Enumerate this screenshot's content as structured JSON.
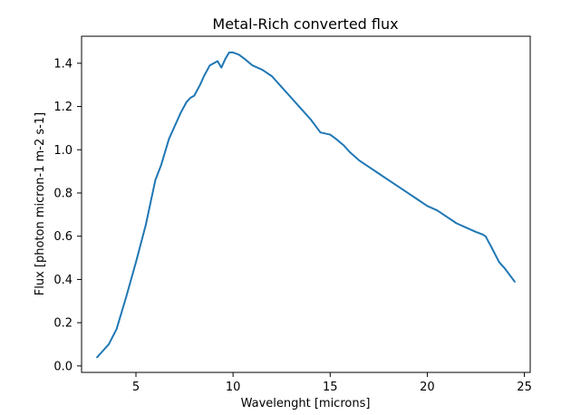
{
  "chart_data": {
    "type": "line",
    "title": "Metal-Rich converted flux",
    "xlabel": "Wavelenght [microns]",
    "ylabel": "Flux [photon micron-1 m-2 s-1]",
    "xlim": [
      2.2,
      25.3
    ],
    "ylim": [
      -0.03,
      1.525
    ],
    "grid": false,
    "legend": "none",
    "x_ticks": [
      5,
      10,
      15,
      20,
      25
    ],
    "x_tick_labels": [
      "5",
      "10",
      "15",
      "20",
      "25"
    ],
    "y_ticks": [
      0.0,
      0.2,
      0.4,
      0.6,
      0.8,
      1.0,
      1.2,
      1.4
    ],
    "y_tick_labels": [
      "0.0",
      "0.2",
      "0.4",
      "0.6",
      "0.8",
      "1.0",
      "1.2",
      "1.4"
    ],
    "series": [
      {
        "color": "#1f77b4",
        "x": [
          3.0,
          3.3,
          3.6,
          4.0,
          4.5,
          5.0,
          5.5,
          6.0,
          6.3,
          6.7,
          7.0,
          7.3,
          7.6,
          7.8,
          8.0,
          8.3,
          8.5,
          8.8,
          9.0,
          9.2,
          9.4,
          9.5,
          9.6,
          9.8,
          10.0,
          10.3,
          10.6,
          11.0,
          11.5,
          12.0,
          12.5,
          13.0,
          13.5,
          14.0,
          14.5,
          15.0,
          15.3,
          15.7,
          16.0,
          16.5,
          17.0,
          17.5,
          18.0,
          18.5,
          19.0,
          19.5,
          20.0,
          20.5,
          21.0,
          21.5,
          22.0,
          22.5,
          22.8,
          23.0,
          23.3,
          23.7,
          24.0,
          24.5
        ],
        "y": [
          0.04,
          0.07,
          0.1,
          0.17,
          0.32,
          0.48,
          0.65,
          0.86,
          0.93,
          1.05,
          1.11,
          1.17,
          1.22,
          1.24,
          1.25,
          1.3,
          1.34,
          1.39,
          1.4,
          1.41,
          1.38,
          1.4,
          1.42,
          1.45,
          1.45,
          1.44,
          1.42,
          1.39,
          1.37,
          1.34,
          1.29,
          1.24,
          1.19,
          1.14,
          1.08,
          1.07,
          1.05,
          1.02,
          0.99,
          0.95,
          0.92,
          0.89,
          0.86,
          0.83,
          0.8,
          0.77,
          0.74,
          0.72,
          0.69,
          0.66,
          0.64,
          0.62,
          0.61,
          0.6,
          0.55,
          0.48,
          0.45,
          0.39
        ]
      }
    ]
  }
}
